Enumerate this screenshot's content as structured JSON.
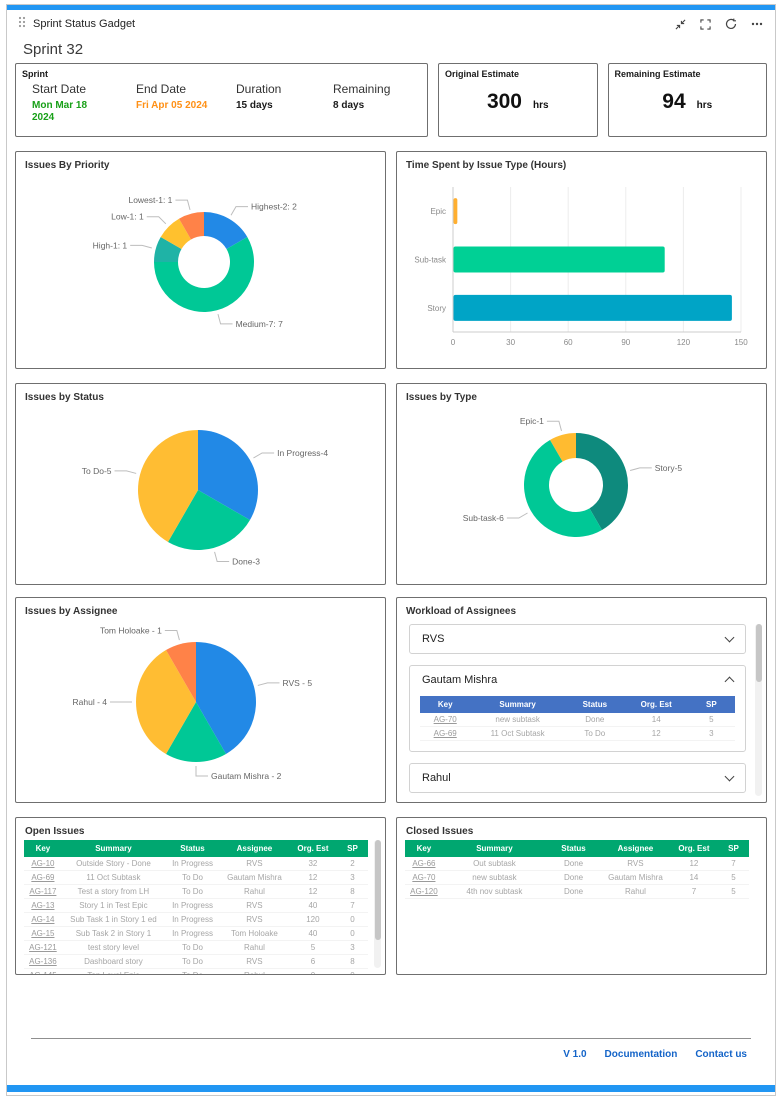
{
  "header": {
    "title": "Sprint Status Gadget"
  },
  "icons": {
    "drag_handle": "grip-dots",
    "collapse": "arrows-inward",
    "fullscreen": "corner-brackets",
    "refresh": "circular-arrows",
    "more": "ellipsis",
    "chevron_collapsed": "chevron-down",
    "chevron_expanded": "chevron-up"
  },
  "sprint_title": "Sprint 32",
  "summary": {
    "sprint": {
      "label": "Sprint",
      "fields": [
        {
          "label": "Start Date",
          "value": "Mon Mar 18 2024",
          "color": "#18a018"
        },
        {
          "label": "End Date",
          "value": "Fri Apr 05 2024",
          "color": "#ff9015"
        },
        {
          "label": "Duration",
          "value": "15 days",
          "color": "#1a1a1a"
        },
        {
          "label": "Remaining",
          "value": "8 days",
          "color": "#1a1a1a"
        }
      ]
    },
    "original_estimate": {
      "label": "Original Estimate",
      "value": "300",
      "unit": "hrs"
    },
    "remaining_estimate": {
      "label": "Remaining Estimate",
      "value": "94",
      "unit": "hrs"
    }
  },
  "chart_data": [
    {
      "id": "priority",
      "type": "pie",
      "donut": true,
      "title": "Issues By Priority",
      "start": 0,
      "slices": [
        {
          "label": "Highest-2: 2",
          "value": 2,
          "color": "#2289e6"
        },
        {
          "label": "Medium-7: 7",
          "value": 7,
          "color": "#00c896"
        },
        {
          "label": "High-1: 1",
          "value": 1,
          "color": "#1fb3a6"
        },
        {
          "label": "Low-1: 1",
          "value": 1,
          "color": "#ffc12e"
        },
        {
          "label": "Lowest-1: 1",
          "value": 1,
          "color": "#ff8248"
        }
      ]
    },
    {
      "id": "timespent",
      "type": "bar",
      "orientation": "horizontal",
      "title": "Time Spent by Issue Type (Hours)",
      "categories": [
        "Epic",
        "Sub-task",
        "Story"
      ],
      "values": [
        2,
        110,
        145
      ],
      "colors": [
        "#ffaf30",
        "#00d095",
        "#00a4c6"
      ],
      "xlim": [
        0,
        150
      ],
      "xticks": [
        0,
        30,
        60,
        90,
        120,
        150
      ],
      "grid": true,
      "xlabel": "",
      "ylabel": ""
    },
    {
      "id": "status",
      "type": "pie",
      "donut": false,
      "title": "Issues by Status",
      "start": 0,
      "slices": [
        {
          "label": "In Progress-4",
          "value": 4,
          "color": "#2289e6"
        },
        {
          "label": "Done-3",
          "value": 3,
          "color": "#00c896"
        },
        {
          "label": "To Do-5",
          "value": 5,
          "color": "#ffbd33"
        }
      ]
    },
    {
      "id": "type",
      "type": "pie",
      "donut": true,
      "title": "Issues by Type",
      "start": -30,
      "slices": [
        {
          "label": "Epic-1",
          "value": 1,
          "color": "#ffbb30"
        },
        {
          "label": "Story-5",
          "value": 5,
          "color": "#0e8a7d"
        },
        {
          "label": "Sub-task-6",
          "value": 6,
          "color": "#00c896"
        }
      ]
    },
    {
      "id": "assignee",
      "type": "pie",
      "donut": false,
      "title": "Issues by Assignee",
      "start": 0,
      "slices": [
        {
          "label": "RVS - 5",
          "value": 5,
          "color": "#2289e6"
        },
        {
          "label": "Gautam Mishra - 2",
          "value": 2,
          "color": "#00c896"
        },
        {
          "label": "Rahul - 4",
          "value": 4,
          "color": "#ffbd33"
        },
        {
          "label": "Tom Holoake - 1",
          "value": 1,
          "color": "#ff8248"
        }
      ]
    }
  ],
  "workload": {
    "title": "Workload of Assignees",
    "header_color": "#4472c4",
    "table_headers": [
      "Key",
      "Summary",
      "Status",
      "Org. Est",
      "SP"
    ],
    "sections": [
      {
        "name": "RVS",
        "expanded": false
      },
      {
        "name": "Gautam Mishra",
        "expanded": true,
        "rows": [
          [
            "AG-70",
            "new subtask",
            "Done",
            "14",
            "5"
          ],
          [
            "AG-69",
            "11 Oct Subtask",
            "To Do",
            "12",
            "3"
          ]
        ]
      },
      {
        "name": "Rahul",
        "expanded": false
      }
    ]
  },
  "open_issues": {
    "title": "Open Issues",
    "header_color": "#00a770",
    "headers": [
      "Key",
      "Summary",
      "Status",
      "Assignee",
      "Org. Est",
      "SP"
    ],
    "rows": [
      [
        "AG-10",
        "Outside Story - Done",
        "In Progress",
        "RVS",
        "32",
        "2"
      ],
      [
        "AG-69",
        "11 Oct Subtask",
        "To Do",
        "Gautam Mishra",
        "12",
        "3"
      ],
      [
        "AG-117",
        "Test a story from LH",
        "To Do",
        "Rahul",
        "12",
        "8"
      ],
      [
        "AG-13",
        "Story 1 in Test Epic",
        "In Progress",
        "RVS",
        "40",
        "7"
      ],
      [
        "AG-14",
        "Sub Task 1 in Story 1 ed",
        "In Progress",
        "RVS",
        "120",
        "0"
      ],
      [
        "AG-15",
        "Sub Task 2 in Story 1",
        "In Progress",
        "Tom Holoake",
        "40",
        "0"
      ],
      [
        "AG-121",
        "test story level",
        "To Do",
        "Rahul",
        "5",
        "3"
      ],
      [
        "AG-136",
        "Dashboard story",
        "To Do",
        "RVS",
        "6",
        "8"
      ],
      [
        "AG-145",
        "Top Level Epic",
        "To Do",
        "Rahul",
        "0",
        "0"
      ]
    ]
  },
  "closed_issues": {
    "title": "Closed Issues",
    "header_color": "#00a770",
    "headers": [
      "Key",
      "Summary",
      "Status",
      "Assignee",
      "Org. Est",
      "SP"
    ],
    "rows": [
      [
        "AG-66",
        "Out subtask",
        "Done",
        "RVS",
        "12",
        "7"
      ],
      [
        "AG-70",
        "new subtask",
        "Done",
        "Gautam Mishra",
        "14",
        "5"
      ],
      [
        "AG-120",
        "4th nov subtask",
        "Done",
        "Rahul",
        "7",
        "5"
      ]
    ]
  },
  "footer": {
    "version": "V 1.0",
    "links": [
      "Documentation",
      "Contact us"
    ]
  }
}
